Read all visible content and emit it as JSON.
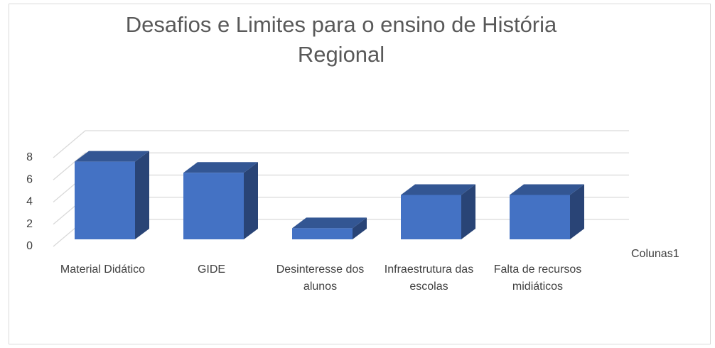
{
  "chart_data": {
    "type": "bar3d",
    "title": "Desafios e Limites para o ensino de História Regional",
    "categories": [
      "Material Didático",
      "GIDE",
      "Desinteresse dos alunos",
      "Infraestrutura das escolas",
      "Falta de recursos midiáticos"
    ],
    "series": [
      {
        "name": "Colunas1",
        "color": "#4472c4",
        "values": [
          7,
          6,
          1,
          4,
          4
        ]
      }
    ],
    "ylim": [
      0,
      8
    ],
    "yticks": [
      0,
      2,
      4,
      6,
      8
    ],
    "grid": true,
    "legend": "right"
  }
}
